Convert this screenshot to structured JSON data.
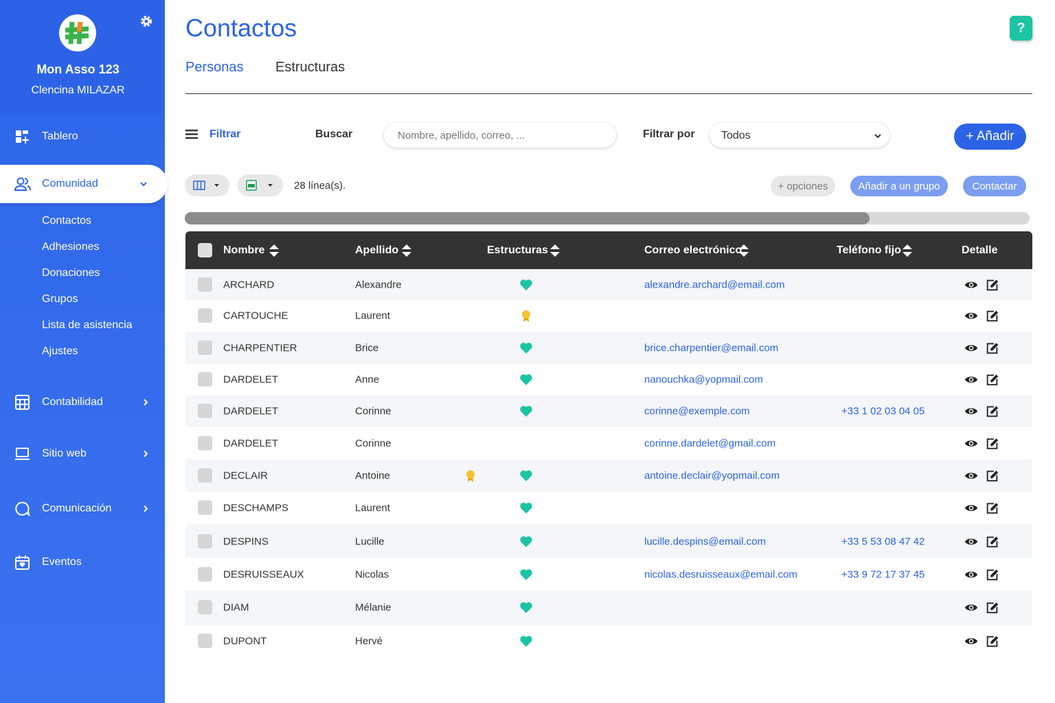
{
  "sidebar": {
    "org_name": "Mon Asso 123",
    "user_name": "Clencina MILAZAR",
    "nav": [
      {
        "label": "Tablero"
      },
      {
        "label": "Comunidad",
        "submenu": [
          "Contactos",
          "Adhesiones",
          "Donaciones",
          "Grupos",
          "Lista de asistencia",
          "Ajustes"
        ]
      },
      {
        "label": "Contabilidad"
      },
      {
        "label": "Sitio web"
      },
      {
        "label": "Comunicación"
      },
      {
        "label": "Eventos"
      }
    ]
  },
  "header": {
    "title": "Contactos",
    "tabs": [
      "Personas",
      "Estructuras"
    ]
  },
  "toolbar": {
    "filter": "Filtrar",
    "search_label": "Buscar",
    "search_placeholder": "Nombre, apellido, correo, ...",
    "filter_by": "Filtrar por",
    "filter_value": "Todos",
    "add": "+ Añadir",
    "line_count": "28 línea(s).",
    "more_options": "+ opciones",
    "add_to_group": "Añadir a un grupo",
    "contact": "Contactar"
  },
  "table": {
    "columns": [
      "Nombre",
      "Apellido",
      "Estructuras",
      "Correo electrónico",
      "Teléfono fijo",
      "Detalle"
    ],
    "rows": [
      {
        "nombre": "ARCHARD",
        "apellido": "Alexandre",
        "email": "alexandre.archard@email.com"
      },
      {
        "nombre": "CARTOUCHE",
        "apellido": "Laurent"
      },
      {
        "nombre": "CHARPENTIER",
        "apellido": "Brice",
        "email": "brice.charpentier@email.com"
      },
      {
        "nombre": "DARDELET",
        "apellido": "Anne",
        "email": "nanouchka@yopmail.com"
      },
      {
        "nombre": "DARDELET",
        "apellido": "Corinne",
        "email": "corinne@exemple.com",
        "phone": "+33 1 02 03 04 05"
      },
      {
        "nombre": "DARDELET",
        "apellido": "Corinne",
        "email": "corinne.dardelet@gmail.com"
      },
      {
        "nombre": "DECLAIR",
        "apellido": "Antoine",
        "email": "antoine.declair@yopmail.com"
      },
      {
        "nombre": "DESCHAMPS",
        "apellido": "Laurent"
      },
      {
        "nombre": "DESPINS",
        "apellido": "Lucille",
        "email": "lucille.despins@email.com",
        "phone": "+33 5 53 08 47 42"
      },
      {
        "nombre": "DESRUISSEAUX",
        "apellido": "Nicolas",
        "email": "nicolas.desruisseaux@email.com",
        "phone": "+33 9 72 17 37 45"
      },
      {
        "nombre": "DIAM",
        "apellido": "Mélanie"
      },
      {
        "nombre": "DUPONT",
        "apellido": "Hervé"
      }
    ]
  }
}
